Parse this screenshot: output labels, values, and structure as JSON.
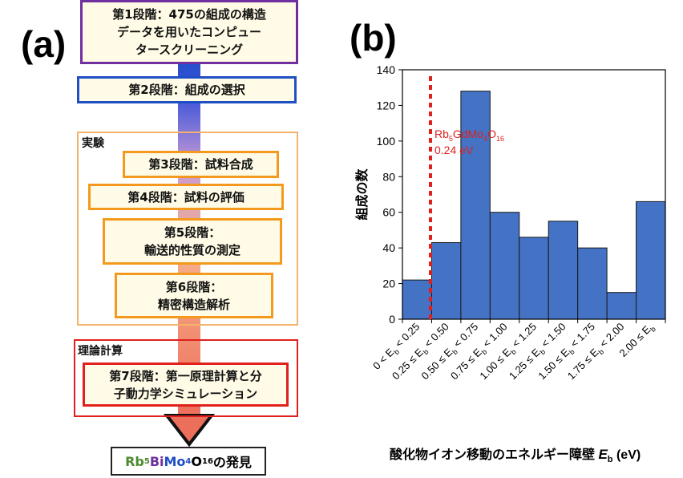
{
  "panel_a": {
    "label": "(a)",
    "steps": [
      {
        "text": "第1段階：475の組成の構造\nデータを用いたコンピュー\nタースクリーニング"
      },
      {
        "text": "第2段階：組成の選択"
      },
      {
        "text": "第3段階：試料合成"
      },
      {
        "text": "第4段階：試料の評価"
      },
      {
        "text": "第5段階：\n輸送的性質の測定"
      },
      {
        "text": "第6段階：\n精密構造解析"
      },
      {
        "text": "第7段階：第一原理計算と分\n子動力学シミュレーション"
      }
    ],
    "experiment_label": "実験",
    "theory_label": "理論計算",
    "result": {
      "rb": "Rb",
      "rb_sub": "5",
      "bi": "Bi",
      "mo": "Mo",
      "mo_sub": "4",
      "o": "O",
      "o_sub": "16",
      "suffix": "の発見"
    },
    "colors": {
      "rb": "#4e8a2e",
      "bi": "#7030a0",
      "mo": "#1f4fc4"
    }
  },
  "panel_b": {
    "label": "(b)"
  },
  "chart_data": {
    "type": "bar",
    "categories": [
      "0 < Eb < 0.25",
      "0.25 ≤ Eb < 0.50",
      "0.50 ≤ Eb < 0.75",
      "0.75 ≤ Eb < 1.00",
      "1.00 ≤ Eb < 1.25",
      "1.25 ≤ Eb < 1.50",
      "1.50 ≤ Eb < 1.75",
      "1.75 ≤ Eb < 2.00",
      "2.00 ≤ Eb"
    ],
    "tick_labels": [
      {
        "pre": "0 < E",
        "sub": "b",
        "post": " < 0.25"
      },
      {
        "pre": "0.25 ≤ E",
        "sub": "b",
        "post": " < 0.50"
      },
      {
        "pre": "0.50 ≤ E",
        "sub": "b",
        "post": " < 0.75"
      },
      {
        "pre": "0.75 ≤ E",
        "sub": "b",
        "post": " < 1.00"
      },
      {
        "pre": "1.00 ≤ E",
        "sub": "b",
        "post": " < 1.25"
      },
      {
        "pre": "1.25 ≤ E",
        "sub": "b",
        "post": " < 1.50"
      },
      {
        "pre": "1.50 ≤ E",
        "sub": "b",
        "post": " < 1.75"
      },
      {
        "pre": "1.75 ≤ E",
        "sub": "b",
        "post": " < 2.00"
      },
      {
        "pre": "2.00 ≤ E",
        "sub": "b",
        "post": ""
      }
    ],
    "values": [
      22,
      43,
      128,
      60,
      46,
      55,
      40,
      15,
      66
    ],
    "ylim": [
      0,
      140
    ],
    "yticks": [
      0,
      20,
      40,
      60,
      80,
      100,
      120,
      140
    ],
    "ylabel": "組成の数",
    "xlabel": {
      "text": "酸化物イオン移動のエネルギー障壁 ",
      "var": "E",
      "sub": "b",
      "unit": " (eV)"
    },
    "bar_color": "#4472c4",
    "grid": false,
    "annotation": {
      "x_value": 0.24,
      "color": "#e0201c",
      "line1": [
        {
          "t": "Rb",
          "s": false
        },
        {
          "t": "5",
          "s": true
        },
        {
          "t": "GdMo",
          "s": false
        },
        {
          "t": "4",
          "s": true
        },
        {
          "t": "O",
          "s": false
        },
        {
          "t": "16",
          "s": true
        }
      ],
      "line2": "0.24 eV"
    }
  }
}
